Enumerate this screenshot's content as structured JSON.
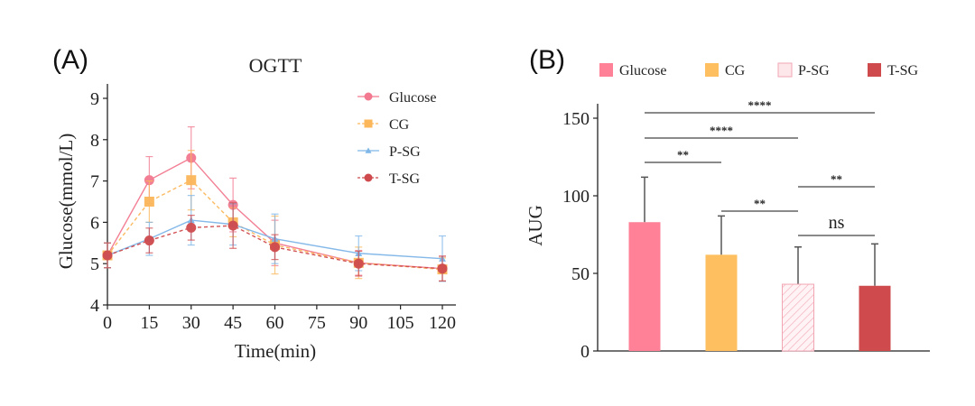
{
  "chart_data": [
    {
      "panel": "(A)",
      "type": "line",
      "title": "OGTT",
      "xlabel": "Time(min)",
      "ylabel": "Glucose(mmol/L)",
      "xlim": [
        0,
        123
      ],
      "ylim": [
        4,
        9.35
      ],
      "xticks": [
        0,
        15,
        30,
        45,
        60,
        75,
        90,
        105,
        120
      ],
      "yticks": [
        4,
        5,
        6,
        7,
        8,
        9
      ],
      "grid": false,
      "legend_position": "top-right",
      "x": [
        0,
        15,
        30,
        45,
        60,
        90,
        120
      ],
      "series": [
        {
          "name": "Glucose",
          "color": "#f2798f",
          "marker": "circle",
          "dash": "solid",
          "values": [
            5.2,
            7.02,
            7.56,
            6.42,
            5.5,
            5.02,
            4.88
          ],
          "err": [
            0.3,
            0.57,
            0.75,
            0.65,
            0.55,
            0.3,
            0.3
          ]
        },
        {
          "name": "CG",
          "color": "#fbb75a",
          "marker": "square",
          "dash": "dashed",
          "values": [
            5.2,
            6.5,
            7.02,
            6.0,
            5.45,
            5.02,
            4.86
          ],
          "err": [
            0.3,
            0.5,
            0.72,
            0.35,
            0.7,
            0.38,
            0.28
          ]
        },
        {
          "name": "P-SG",
          "color": "#7fb6e8",
          "marker": "triangle",
          "dash": "solid",
          "values": [
            5.2,
            5.6,
            6.05,
            5.95,
            5.6,
            5.25,
            5.12
          ],
          "err": [
            0.3,
            0.4,
            0.6,
            0.5,
            0.6,
            0.42,
            0.55
          ]
        },
        {
          "name": "T-SG",
          "color": "#cf4a4d",
          "marker": "circle",
          "dash": "dashed",
          "values": [
            5.2,
            5.56,
            5.87,
            5.92,
            5.4,
            5.0,
            4.88
          ],
          "err": [
            0.3,
            0.3,
            0.3,
            0.55,
            0.3,
            0.3,
            0.3
          ]
        }
      ]
    },
    {
      "panel": "(B)",
      "type": "bar",
      "title": "",
      "xlabel": "",
      "ylabel": "AUG",
      "ylim": [
        0,
        160
      ],
      "yticks": [
        0,
        50,
        100,
        150
      ],
      "grid": false,
      "legend_position": "top",
      "categories": [
        "Glucose",
        "CG",
        "P-SG",
        "T-SG"
      ],
      "values": [
        83,
        62,
        43,
        42
      ],
      "err": [
        29,
        25,
        24,
        27
      ],
      "colors": [
        "#fe8197",
        "#fdbf5f",
        "#fde7eb",
        "#cf4a4d"
      ],
      "hatched": [
        false,
        false,
        true,
        false
      ],
      "significance": [
        {
          "from": 0,
          "to": 3,
          "label": "****",
          "level": 1
        },
        {
          "from": 0,
          "to": 2,
          "label": "****",
          "level": 2
        },
        {
          "from": 0,
          "to": 1,
          "label": "**",
          "level": 3
        },
        {
          "from": 2,
          "to": 3,
          "label": "**",
          "level": 4
        },
        {
          "from": 1,
          "to": 2,
          "label": "**",
          "level": 5
        },
        {
          "from": 2,
          "to": 3,
          "label": "ns",
          "level": 6
        }
      ]
    }
  ]
}
